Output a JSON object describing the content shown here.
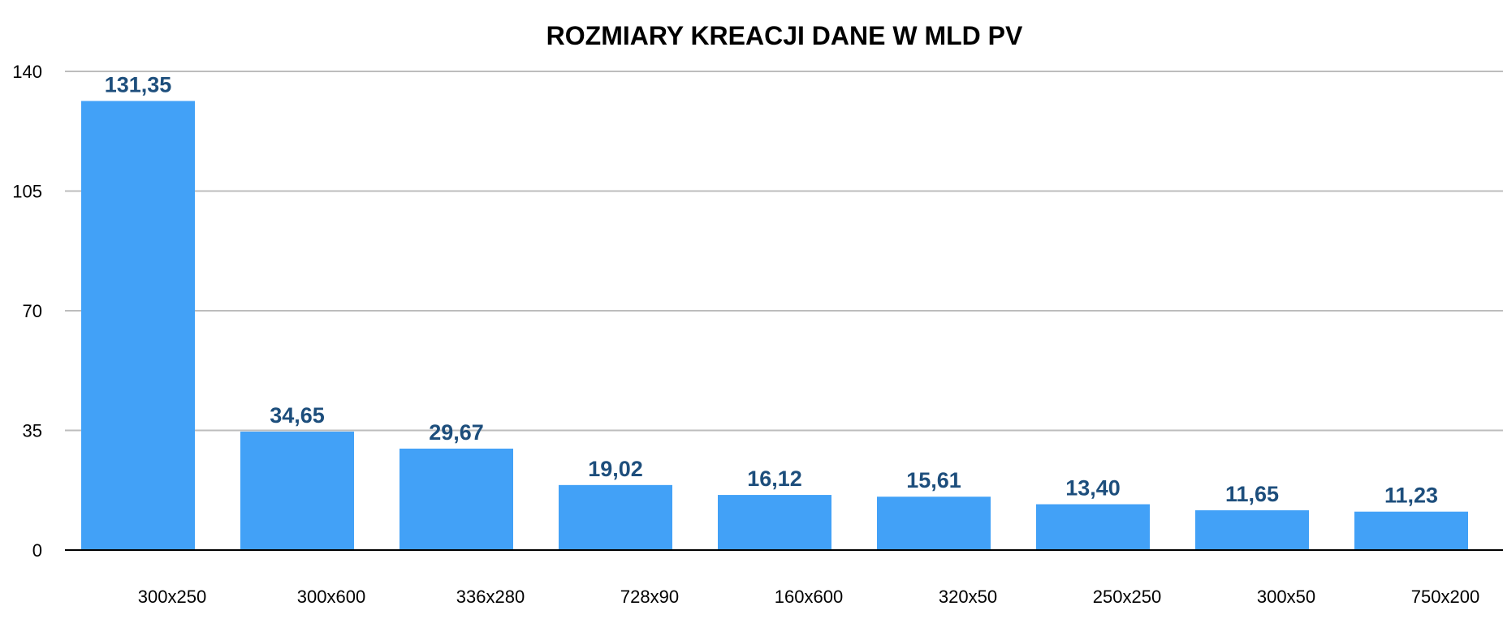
{
  "chart_data": {
    "type": "bar",
    "title": "ROZMIARY KREACJI DANE W MLD PV",
    "xlabel": "",
    "ylabel": "",
    "categories": [
      "300x250",
      "300x600",
      "336x280",
      "728x90",
      "160x600",
      "320x50",
      "250x250",
      "300x50",
      "750x200"
    ],
    "values": [
      131.35,
      34.65,
      29.67,
      19.02,
      16.12,
      15.61,
      13.4,
      11.65,
      11.23
    ],
    "data_labels": [
      "131,35",
      "34,65",
      "29,67",
      "19,02",
      "16,12",
      "15,61",
      "13,40",
      "11,65",
      "11,23"
    ],
    "ylim": [
      0,
      140
    ],
    "yticks": [
      0,
      35,
      70,
      105,
      140
    ],
    "ytick_labels": [
      "0",
      "35",
      "70",
      "105",
      "140"
    ],
    "grid": true,
    "legend": "none",
    "colors": {
      "bar": "#42a1f7",
      "data_label": "#1d4e7c",
      "grid": "#bdbdbd",
      "axis": "#000000"
    }
  }
}
